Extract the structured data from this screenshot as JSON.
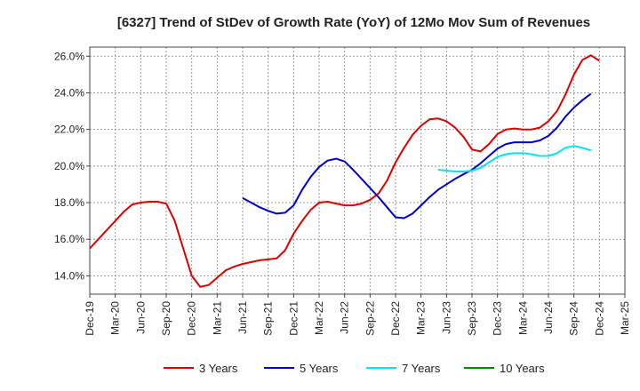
{
  "chart_data": {
    "type": "line",
    "title": "[6327]  Trend of StDev of Growth Rate (YoY) of 12Mo Mov Sum of Revenues",
    "xlabel": "",
    "ylabel": "",
    "ylim": [
      13.0,
      26.5
    ],
    "yticks": [
      14.0,
      16.0,
      18.0,
      20.0,
      22.0,
      24.0,
      26.0
    ],
    "ytick_labels": [
      "14.0%",
      "16.0%",
      "18.0%",
      "20.0%",
      "22.0%",
      "24.0%",
      "26.0%"
    ],
    "xticks": [
      "Dec-19",
      "Mar-20",
      "Jun-20",
      "Sep-20",
      "Dec-20",
      "Mar-21",
      "Jun-21",
      "Sep-21",
      "Dec-21",
      "Mar-22",
      "Jun-22",
      "Sep-22",
      "Dec-22",
      "Mar-23",
      "Jun-23",
      "Sep-23",
      "Dec-23",
      "Mar-24",
      "Jun-24",
      "Sep-24",
      "Dec-24",
      "Mar-25"
    ],
    "grid": true,
    "legend_position": "bottom",
    "series": [
      {
        "name": "3 Years",
        "color": "#dd0000",
        "start_index": 0,
        "values": [
          15.5,
          16.0,
          16.5,
          17.0,
          17.5,
          17.9,
          18.0,
          18.05,
          18.05,
          17.95,
          17.0,
          15.5,
          14.0,
          13.4,
          13.5,
          13.9,
          14.3,
          14.5,
          14.65,
          14.75,
          14.85,
          14.9,
          14.95,
          15.4,
          16.3,
          17.0,
          17.6,
          18.0,
          18.05,
          17.95,
          17.85,
          17.85,
          17.95,
          18.15,
          18.5,
          19.2,
          20.2,
          21.0,
          21.7,
          22.2,
          22.55,
          22.6,
          22.45,
          22.1,
          21.6,
          20.9,
          20.8,
          21.2,
          21.75,
          22.0,
          22.05,
          22.0,
          22.0,
          22.1,
          22.45,
          23.0,
          23.9,
          25.0,
          25.8,
          26.05,
          25.75
        ]
      },
      {
        "name": "5 Years",
        "color": "#0000cc",
        "start_index": 18,
        "values": [
          18.25,
          18.0,
          17.75,
          17.55,
          17.4,
          17.45,
          17.85,
          18.7,
          19.4,
          19.95,
          20.3,
          20.4,
          20.25,
          19.8,
          19.3,
          18.8,
          18.3,
          17.75,
          17.2,
          17.15,
          17.4,
          17.85,
          18.3,
          18.7,
          19.0,
          19.3,
          19.55,
          19.8,
          20.15,
          20.55,
          20.95,
          21.2,
          21.3,
          21.3,
          21.3,
          21.4,
          21.65,
          22.1,
          22.7,
          23.2,
          23.6,
          23.95
        ]
      },
      {
        "name": "7 Years",
        "color": "#00e5ee",
        "start_index": 41,
        "values": [
          19.8,
          19.75,
          19.7,
          19.7,
          19.75,
          19.9,
          20.2,
          20.5,
          20.65,
          20.7,
          20.7,
          20.65,
          20.55,
          20.55,
          20.7,
          21.0,
          21.1,
          21.0,
          20.85
        ]
      },
      {
        "name": "10 Years",
        "color": "#008800",
        "start_index": 0,
        "values": []
      }
    ]
  }
}
